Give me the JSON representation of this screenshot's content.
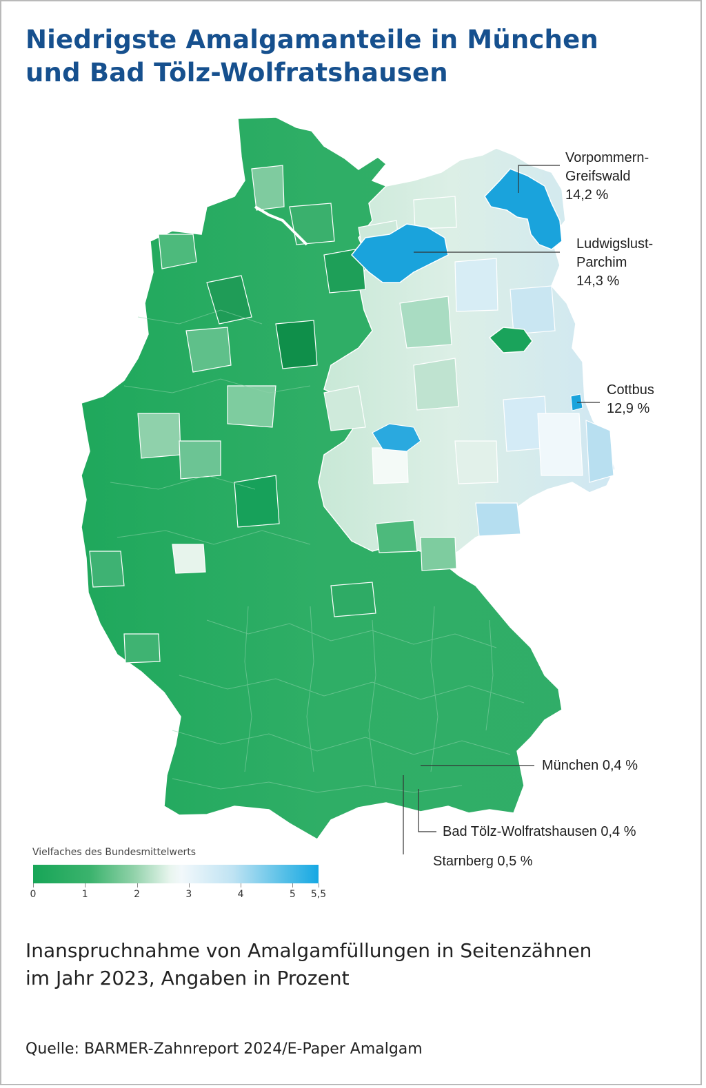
{
  "title_lines": [
    "Niedrigste Amalgamanteile in München",
    "und Bad Tölz-Wolfratshausen"
  ],
  "callouts": [
    {
      "id": "vorpommern",
      "lines": [
        "Vorpommern-",
        "Greifswald",
        "14,2 %"
      ],
      "color": "#1ba6dd"
    },
    {
      "id": "ludwigslust",
      "lines": [
        "Ludwigslust-",
        "Parchim",
        "14,3 %"
      ],
      "color": "#1ba6dd"
    },
    {
      "id": "cottbus",
      "lines": [
        "Cottbus",
        "12,9 %"
      ],
      "color": "#1ba6dd"
    },
    {
      "id": "muenchen",
      "lines": [
        "München 0,4 %"
      ],
      "color": "#159a52"
    },
    {
      "id": "badtoelz",
      "lines": [
        "Bad Tölz-Wolfratshausen 0,4 %"
      ],
      "color": "#159a52"
    },
    {
      "id": "starnberg",
      "lines": [
        "Starnberg 0,5 %"
      ],
      "color": "#159a52"
    }
  ],
  "legend": {
    "title": "Vielfaches des Bundesmittelwerts",
    "ticks": [
      "0",
      "1",
      "2",
      "3",
      "4",
      "5",
      "5,5"
    ],
    "tick_values": [
      0,
      1,
      2,
      3,
      4,
      5,
      5.5
    ],
    "scale_min": 0,
    "scale_max": 5.5,
    "colors": {
      "low": "#17a557",
      "mid": "#eef7f2",
      "high": "#16a8e3"
    }
  },
  "subtitle_lines": [
    "Inanspruchnahme von Amalgamfüllungen in Seitenzähnen",
    "im Jahr 2023, Angaben in Prozent"
  ],
  "source": "Quelle: BARMER-Zahnreport 2024/E-Paper Amalgam"
}
